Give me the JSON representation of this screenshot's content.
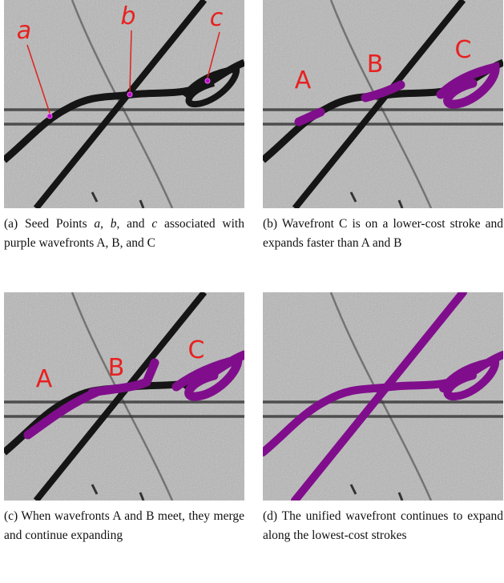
{
  "panels": [
    {
      "labels": [
        "a",
        "b",
        "c"
      ],
      "caption": [
        {
          "text": "(a) Seed Points "
        },
        {
          "text": "a",
          "italic": true
        },
        {
          "text": ", "
        },
        {
          "text": "b",
          "italic": true
        },
        {
          "text": ", and "
        },
        {
          "text": "c",
          "italic": true
        },
        {
          "text": " associated with purple wavefronts A, B, and C"
        }
      ]
    },
    {
      "labels": [
        "A",
        "B",
        "C"
      ],
      "caption": [
        {
          "text": "(b) Wavefront C is on a lower-cost stroke and expands faster than A and B"
        }
      ]
    },
    {
      "labels": [
        "A",
        "B",
        "C"
      ],
      "caption": [
        {
          "text": "(c) When wavefronts A and B meet, they merge and continue expanding"
        }
      ]
    },
    {
      "labels": [],
      "caption": [
        {
          "text": "(d) The unified wavefront continues to expand along the lowest-cost strokes"
        }
      ]
    }
  ]
}
